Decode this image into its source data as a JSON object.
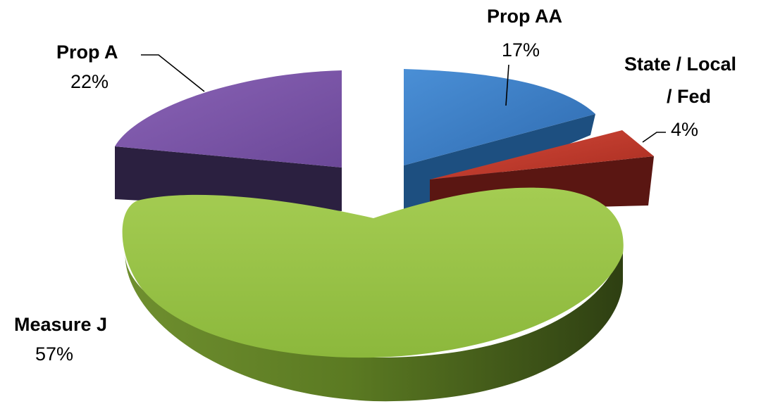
{
  "chart_data": {
    "type": "pie",
    "style": "3d-exploded",
    "title": "",
    "slices": [
      {
        "name": "Prop AA",
        "percent_label": "17%",
        "value": 17,
        "color": "#3c7ec8"
      },
      {
        "name": "State / Local / Fed",
        "name_lines": [
          "State / Local",
          "/ Fed"
        ],
        "percent_label": "4%",
        "value": 4,
        "color": "#c0392b"
      },
      {
        "name": "Measure J",
        "percent_label": "57%",
        "value": 57,
        "color": "#93bf45"
      },
      {
        "name": "Prop A",
        "percent_label": "22%",
        "value": 22,
        "color": "#7a55a2"
      }
    ]
  }
}
